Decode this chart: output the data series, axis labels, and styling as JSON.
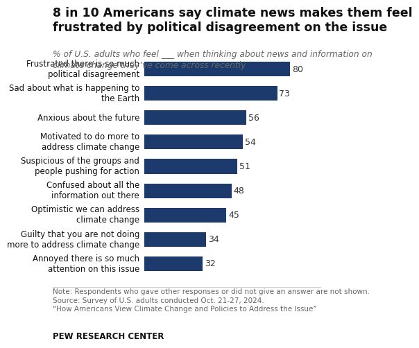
{
  "title_line1": "8 in 10 Americans say climate news makes them feel",
  "title_line2": "frustrated by political disagreement on the issue",
  "subtitle": "% of U.S. adults who feel ___ when thinking about news and information on\nclimate change they’ve come across recently",
  "categories": [
    "Frustrated there is so much\npolitical disagreement",
    "Sad about what is happening to\nthe Earth",
    "Anxious about the future",
    "Motivated to do more to\naddress climate change",
    "Suspicious of the groups and\npeople pushing for action",
    "Confused about all the\ninformation out there",
    "Optimistic we can address\nclimate change",
    "Guilty that you are not doing\nmore to address climate change",
    "Annoyed there is so much\nattention on this issue"
  ],
  "values": [
    80,
    73,
    56,
    54,
    51,
    48,
    45,
    34,
    32
  ],
  "bar_color": "#1C3A6B",
  "value_color": "#333333",
  "background_color": "#FFFFFF",
  "title_fontsize": 12.5,
  "subtitle_fontsize": 8.8,
  "label_fontsize": 8.5,
  "value_fontsize": 9.0,
  "note_fontsize": 7.5,
  "footer_fontsize": 8.5,
  "note": "Note: Respondents who gave other responses or did not give an answer are not shown.\nSource: Survey of U.S. adults conducted Oct. 21-27, 2024.\n“How Americans View Climate Change and Policies to Address the Issue”",
  "footer": "PEW RESEARCH CENTER",
  "xlim": [
    0,
    92
  ]
}
